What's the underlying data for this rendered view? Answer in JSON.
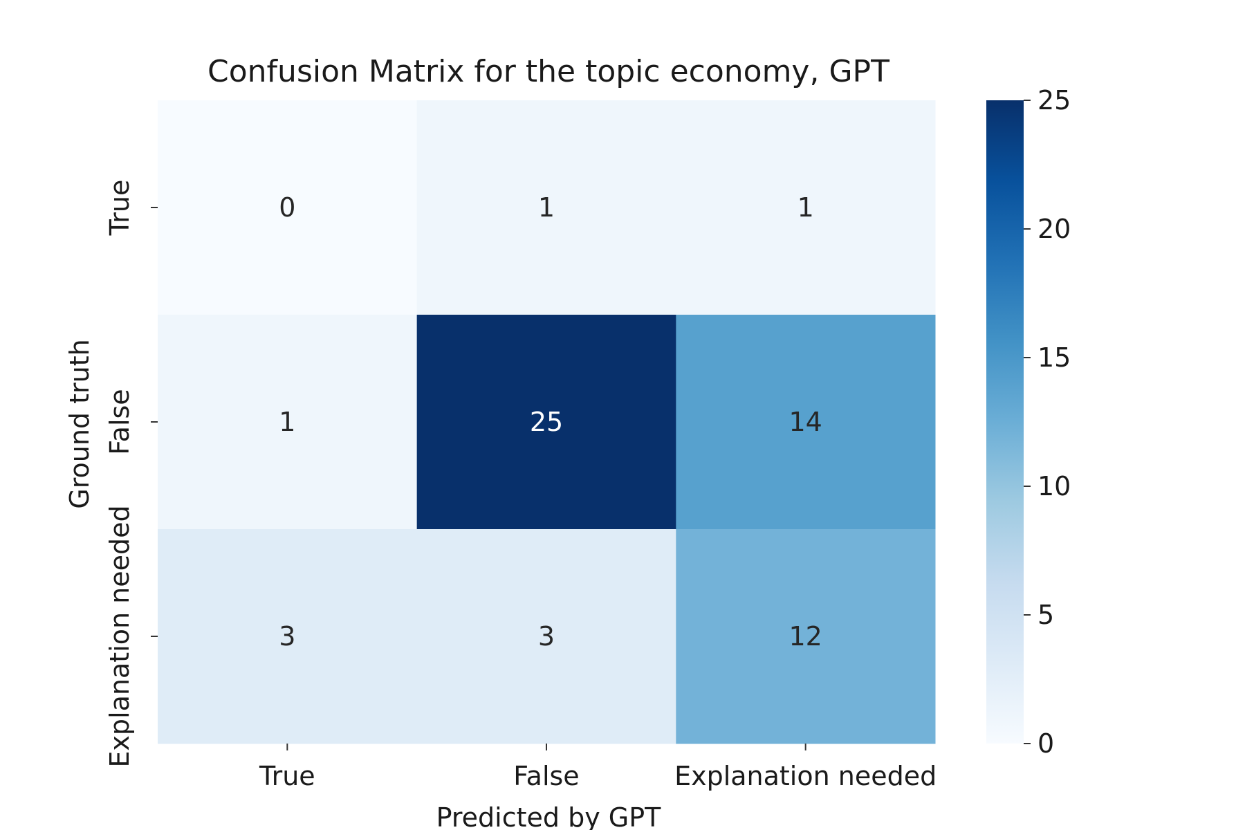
{
  "chart_data": {
    "type": "heatmap",
    "title": "Confusion Matrix for the topic economy, GPT",
    "xlabel": "Predicted by GPT",
    "ylabel": "Ground truth",
    "x_categories": [
      "True",
      "False",
      "Explanation needed"
    ],
    "y_categories": [
      "True",
      "False",
      "Explanation needed"
    ],
    "values": [
      [
        0,
        1,
        1
      ],
      [
        1,
        25,
        14
      ],
      [
        3,
        3,
        12
      ]
    ],
    "colormap": "Blues",
    "colorbar": {
      "min": 0,
      "max": 25,
      "ticks": [
        0,
        5,
        10,
        15,
        20,
        25
      ]
    },
    "annotations": true,
    "grid": false
  }
}
